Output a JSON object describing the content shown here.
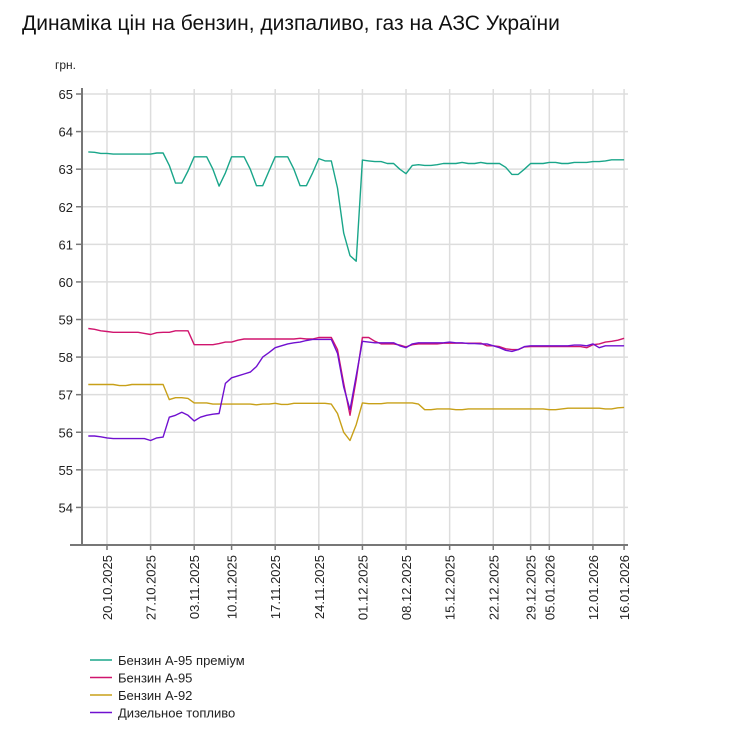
{
  "chart_data": {
    "type": "line",
    "title": "Динаміка цін на бензин, дизпаливо, газ на АЗС України",
    "ylabel": "грн.",
    "xlabel": "",
    "ylim": [
      53,
      65
    ],
    "yticks": [
      54,
      55,
      56,
      57,
      58,
      59,
      60,
      61,
      62,
      63,
      64,
      65
    ],
    "grid": true,
    "legend_position": "bottom-left",
    "n_points": 87,
    "xticks": [
      {
        "index": 3,
        "label": "20.10.2025"
      },
      {
        "index": 10,
        "label": "27.10.2025"
      },
      {
        "index": 17,
        "label": "03.11.2025"
      },
      {
        "index": 23,
        "label": "10.11.2025"
      },
      {
        "index": 30,
        "label": "17.11.2025"
      },
      {
        "index": 37,
        "label": "24.11.2025"
      },
      {
        "index": 44,
        "label": "01.12.2025"
      },
      {
        "index": 51,
        "label": "08.12.2025"
      },
      {
        "index": 58,
        "label": "15.12.2025"
      },
      {
        "index": 65,
        "label": "22.12.2025"
      },
      {
        "index": 71,
        "label": "29.12.2025"
      },
      {
        "index": 74,
        "label": "05.01.2026"
      },
      {
        "index": 81,
        "label": "12.01.2026"
      },
      {
        "index": 86,
        "label": "16.01.2026"
      }
    ],
    "series": [
      {
        "name": "Бензин А-95 преміум",
        "color": "#1aa68a",
        "values": [
          63.46,
          63.45,
          63.42,
          63.42,
          63.4,
          63.4,
          63.4,
          63.4,
          63.4,
          63.4,
          63.4,
          63.43,
          63.43,
          63.1,
          62.63,
          62.63,
          62.95,
          63.33,
          63.33,
          63.33,
          63.0,
          62.55,
          62.9,
          63.33,
          63.33,
          63.33,
          63.0,
          62.56,
          62.56,
          62.95,
          63.33,
          63.33,
          63.33,
          63.0,
          62.56,
          62.56,
          62.9,
          63.28,
          63.22,
          63.22,
          62.5,
          61.3,
          60.7,
          60.55,
          63.24,
          63.22,
          63.2,
          63.2,
          63.15,
          63.15,
          63.0,
          62.88,
          63.1,
          63.12,
          63.1,
          63.1,
          63.12,
          63.15,
          63.15,
          63.15,
          63.18,
          63.15,
          63.15,
          63.18,
          63.15,
          63.15,
          63.15,
          63.05,
          62.86,
          62.86,
          63.0,
          63.15,
          63.15,
          63.15,
          63.18,
          63.18,
          63.15,
          63.15,
          63.18,
          63.18,
          63.18,
          63.2,
          63.2,
          63.22,
          63.25,
          63.25,
          63.25
        ]
      },
      {
        "name": "Бензин А-95",
        "color": "#d0156e",
        "values": [
          58.76,
          58.74,
          58.7,
          58.68,
          58.66,
          58.66,
          58.66,
          58.66,
          58.66,
          58.63,
          58.6,
          58.65,
          58.66,
          58.66,
          58.7,
          58.7,
          58.7,
          58.33,
          58.33,
          58.33,
          58.33,
          58.36,
          58.4,
          58.4,
          58.45,
          58.48,
          58.48,
          58.48,
          58.48,
          58.48,
          58.48,
          58.48,
          58.48,
          58.48,
          58.5,
          58.48,
          58.48,
          58.52,
          58.52,
          58.52,
          58.2,
          57.3,
          56.45,
          57.4,
          58.52,
          58.52,
          58.42,
          58.35,
          58.35,
          58.35,
          58.32,
          58.27,
          58.33,
          58.35,
          58.35,
          58.35,
          58.35,
          58.37,
          58.37,
          58.37,
          58.37,
          58.37,
          58.37,
          58.37,
          58.3,
          58.3,
          58.28,
          58.22,
          58.2,
          58.2,
          58.27,
          58.28,
          58.28,
          58.28,
          58.28,
          58.28,
          58.28,
          58.28,
          58.28,
          58.28,
          58.25,
          58.33,
          58.35,
          58.4,
          58.42,
          58.45,
          58.5
        ]
      },
      {
        "name": "Бензин А-92",
        "color": "#c8a018",
        "values": [
          57.27,
          57.27,
          57.27,
          57.27,
          57.27,
          57.24,
          57.24,
          57.27,
          57.27,
          57.27,
          57.27,
          57.27,
          57.27,
          56.87,
          56.92,
          56.92,
          56.9,
          56.78,
          56.78,
          56.78,
          56.75,
          56.75,
          56.75,
          56.75,
          56.75,
          56.75,
          56.75,
          56.73,
          56.75,
          56.75,
          56.77,
          56.74,
          56.74,
          56.77,
          56.77,
          56.77,
          56.77,
          56.77,
          56.77,
          56.75,
          56.5,
          56.0,
          55.78,
          56.2,
          56.78,
          56.76,
          56.76,
          56.76,
          56.78,
          56.78,
          56.78,
          56.78,
          56.78,
          56.75,
          56.6,
          56.6,
          56.62,
          56.62,
          56.62,
          56.6,
          56.6,
          56.62,
          56.62,
          56.62,
          56.62,
          56.62,
          56.62,
          56.62,
          56.62,
          56.62,
          56.62,
          56.62,
          56.62,
          56.62,
          56.6,
          56.6,
          56.62,
          56.64,
          56.64,
          56.64,
          56.64,
          56.64,
          56.64,
          56.62,
          56.62,
          56.65,
          56.66
        ]
      },
      {
        "name": "Дизельное топливо",
        "color": "#7010d0",
        "values": [
          55.9,
          55.9,
          55.88,
          55.85,
          55.83,
          55.83,
          55.83,
          55.83,
          55.83,
          55.83,
          55.78,
          55.85,
          55.87,
          56.4,
          56.45,
          56.53,
          56.45,
          56.3,
          56.4,
          56.45,
          56.48,
          56.5,
          57.3,
          57.45,
          57.5,
          57.55,
          57.6,
          57.75,
          58.0,
          58.12,
          58.25,
          58.3,
          58.35,
          58.38,
          58.4,
          58.44,
          58.47,
          58.47,
          58.47,
          58.47,
          58.1,
          57.2,
          56.6,
          57.5,
          58.42,
          58.4,
          58.38,
          58.38,
          58.38,
          58.38,
          58.3,
          58.25,
          58.35,
          58.38,
          58.38,
          58.38,
          58.38,
          58.38,
          58.4,
          58.38,
          58.38,
          58.36,
          58.36,
          58.35,
          58.35,
          58.3,
          58.25,
          58.18,
          58.15,
          58.2,
          58.28,
          58.3,
          58.3,
          58.3,
          58.3,
          58.3,
          58.3,
          58.3,
          58.32,
          58.32,
          58.3,
          58.35,
          58.25,
          58.3,
          58.3,
          58.3,
          58.3
        ]
      }
    ]
  }
}
